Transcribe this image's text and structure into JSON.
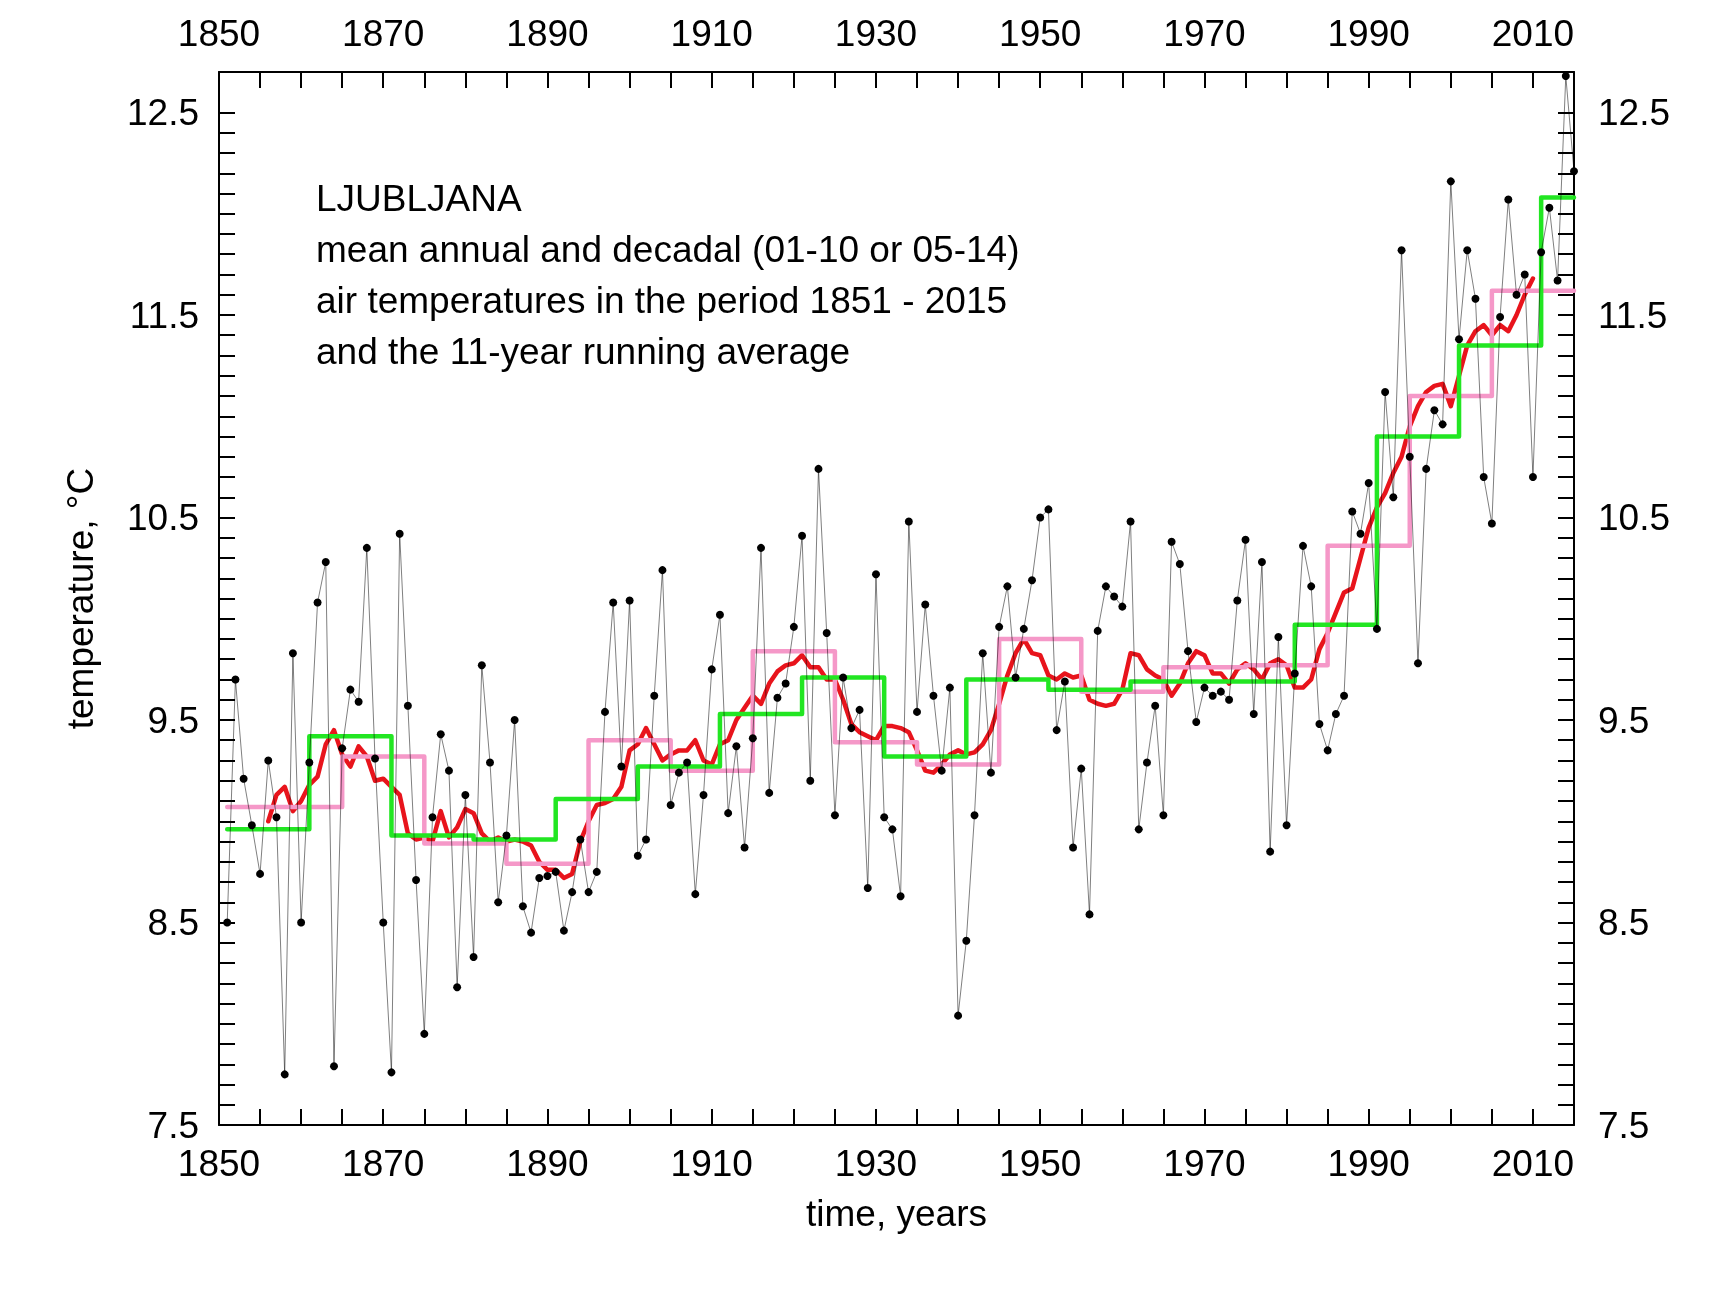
{
  "chart_data": {
    "type": "line",
    "title": "LJUBLJANA",
    "subtitle": "mean annual and decadal (01-10 or 05-14)\nair temperatures in the period 1851 - 2015\nand the 11-year running average",
    "xlabel": "time, years",
    "ylabel": "temperature, °C",
    "xlim": [
      1850,
      2015
    ],
    "ylim": [
      7.5,
      12.7
    ],
    "x2lim": [
      1850,
      2015
    ],
    "y2lim": [
      7.5,
      12.7
    ],
    "xticks": [
      1850,
      {
        "value": 1855,
        "label": null
      },
      {
        "value": 1860,
        "label": null
      },
      {
        "value": 1865,
        "label": null
      },
      1870,
      {
        "value": 1875,
        "label": null
      },
      {
        "value": 1880,
        "label": null
      },
      {
        "value": 1885,
        "label": null
      },
      1890,
      {
        "value": 1895,
        "label": null
      },
      {
        "value": 1900,
        "label": null
      },
      {
        "value": 1905,
        "label": null
      },
      1910,
      {
        "value": 1915,
        "label": null
      },
      {
        "value": 1920,
        "label": null
      },
      {
        "value": 1925,
        "label": null
      },
      1930,
      {
        "value": 1935,
        "label": null
      },
      {
        "value": 1940,
        "label": null
      },
      {
        "value": 1945,
        "label": null
      },
      1950,
      {
        "value": 1955,
        "label": null
      },
      {
        "value": 1960,
        "label": null
      },
      {
        "value": 1965,
        "label": null
      },
      1970,
      {
        "value": 1975,
        "label": null
      },
      {
        "value": 1980,
        "label": null
      },
      {
        "value": 1985,
        "label": null
      },
      1990,
      {
        "value": 1995,
        "label": null
      },
      {
        "value": 2000,
        "label": null
      },
      {
        "value": 2005,
        "label": null
      },
      2010,
      {
        "value": 2015,
        "label": null
      }
    ],
    "x2ticks": [
      1850,
      {
        "value": 1855,
        "label": null
      },
      {
        "value": 1860,
        "label": null
      },
      {
        "value": 1865,
        "label": null
      },
      1870,
      {
        "value": 1875,
        "label": null
      },
      {
        "value": 1880,
        "label": null
      },
      {
        "value": 1885,
        "label": null
      },
      1890,
      {
        "value": 1895,
        "label": null
      },
      {
        "value": 1900,
        "label": null
      },
      {
        "value": 1905,
        "label": null
      },
      1910,
      {
        "value": 1915,
        "label": null
      },
      {
        "value": 1920,
        "label": null
      },
      {
        "value": 1925,
        "label": null
      },
      1930,
      {
        "value": 1935,
        "label": null
      },
      {
        "value": 1940,
        "label": null
      },
      {
        "value": 1945,
        "label": null
      },
      1950,
      {
        "value": 1955,
        "label": null
      },
      {
        "value": 1960,
        "label": null
      },
      {
        "value": 1965,
        "label": null
      },
      1970,
      {
        "value": 1975,
        "label": null
      },
      {
        "value": 1980,
        "label": null
      },
      {
        "value": 1985,
        "label": null
      },
      1990,
      {
        "value": 1995,
        "label": null
      },
      {
        "value": 2000,
        "label": null
      },
      {
        "value": 2005,
        "label": null
      },
      2010,
      {
        "value": 2015,
        "label": null
      }
    ],
    "yticks": [
      7.5,
      {
        "value": 7.6,
        "label": null
      },
      {
        "value": 7.7,
        "label": null
      },
      {
        "value": 7.8,
        "label": null
      },
      {
        "value": 7.9,
        "label": null
      },
      {
        "value": 8.0,
        "label": null
      },
      {
        "value": 8.1,
        "label": null
      },
      {
        "value": 8.2,
        "label": null
      },
      {
        "value": 8.3,
        "label": null
      },
      {
        "value": 8.4,
        "label": null
      },
      8.5,
      {
        "value": 8.6,
        "label": null
      },
      {
        "value": 8.7,
        "label": null
      },
      {
        "value": 8.8,
        "label": null
      },
      {
        "value": 8.9,
        "label": null
      },
      {
        "value": 9.0,
        "label": null
      },
      {
        "value": 9.1,
        "label": null
      },
      {
        "value": 9.2,
        "label": null
      },
      {
        "value": 9.3,
        "label": null
      },
      {
        "value": 9.4,
        "label": null
      },
      9.5,
      {
        "value": 9.6,
        "label": null
      },
      {
        "value": 9.7,
        "label": null
      },
      {
        "value": 9.8,
        "label": null
      },
      {
        "value": 9.9,
        "label": null
      },
      {
        "value": 10.0,
        "label": null
      },
      {
        "value": 10.1,
        "label": null
      },
      {
        "value": 10.2,
        "label": null
      },
      {
        "value": 10.3,
        "label": null
      },
      {
        "value": 10.4,
        "label": null
      },
      10.5,
      {
        "value": 10.6,
        "label": null
      },
      {
        "value": 10.7,
        "label": null
      },
      {
        "value": 10.8,
        "label": null
      },
      {
        "value": 10.9,
        "label": null
      },
      {
        "value": 11.0,
        "label": null
      },
      {
        "value": 11.1,
        "label": null
      },
      {
        "value": 11.2,
        "label": null
      },
      {
        "value": 11.3,
        "label": null
      },
      {
        "value": 11.4,
        "label": null
      },
      11.5,
      {
        "value": 11.6,
        "label": null
      },
      {
        "value": 11.7,
        "label": null
      },
      {
        "value": 11.8,
        "label": null
      },
      {
        "value": 11.9,
        "label": null
      },
      {
        "value": 12.0,
        "label": null
      },
      {
        "value": 12.1,
        "label": null
      },
      {
        "value": 12.2,
        "label": null
      },
      {
        "value": 12.3,
        "label": null
      },
      {
        "value": 12.4,
        "label": null
      },
      12.5
    ],
    "y2ticks": [
      7.5,
      {
        "value": 7.6,
        "label": null
      },
      {
        "value": 7.7,
        "label": null
      },
      {
        "value": 7.8,
        "label": null
      },
      {
        "value": 7.9,
        "label": null
      },
      {
        "value": 8.0,
        "label": null
      },
      {
        "value": 8.1,
        "label": null
      },
      {
        "value": 8.2,
        "label": null
      },
      {
        "value": 8.3,
        "label": null
      },
      {
        "value": 8.4,
        "label": null
      },
      8.5,
      {
        "value": 8.6,
        "label": null
      },
      {
        "value": 8.7,
        "label": null
      },
      {
        "value": 8.8,
        "label": null
      },
      {
        "value": 8.9,
        "label": null
      },
      {
        "value": 9.0,
        "label": null
      },
      {
        "value": 9.1,
        "label": null
      },
      {
        "value": 9.2,
        "label": null
      },
      {
        "value": 9.3,
        "label": null
      },
      {
        "value": 9.4,
        "label": null
      },
      9.5,
      {
        "value": 9.6,
        "label": null
      },
      {
        "value": 9.7,
        "label": null
      },
      {
        "value": 9.8,
        "label": null
      },
      {
        "value": 9.9,
        "label": null
      },
      {
        "value": 10.0,
        "label": null
      },
      {
        "value": 10.1,
        "label": null
      },
      {
        "value": 10.2,
        "label": null
      },
      {
        "value": 10.3,
        "label": null
      },
      {
        "value": 10.4,
        "label": null
      },
      10.5,
      {
        "value": 10.6,
        "label": null
      },
      {
        "value": 10.7,
        "label": null
      },
      {
        "value": 10.8,
        "label": null
      },
      {
        "value": 10.9,
        "label": null
      },
      {
        "value": 11.0,
        "label": null
      },
      {
        "value": 11.1,
        "label": null
      },
      {
        "value": 11.2,
        "label": null
      },
      {
        "value": 11.3,
        "label": null
      },
      {
        "value": 11.4,
        "label": null
      },
      11.5,
      {
        "value": 11.6,
        "label": null
      },
      {
        "value": 11.7,
        "label": null
      },
      {
        "value": 11.8,
        "label": null
      },
      {
        "value": 11.9,
        "label": null
      },
      {
        "value": 12.0,
        "label": null
      },
      {
        "value": 12.1,
        "label": null
      },
      {
        "value": 12.2,
        "label": null
      },
      {
        "value": 12.3,
        "label": null
      },
      {
        "value": 12.4,
        "label": null
      },
      12.5
    ],
    "grid": false,
    "series": [
      {
        "type": "line",
        "color": "#000000",
        "marker": "circle",
        "x": [
          1851,
          1852,
          1853,
          1854,
          1855,
          1856,
          1857,
          1858,
          1859,
          1860,
          1861,
          1862,
          1863,
          1864,
          1865,
          1866,
          1867,
          1868,
          1869,
          1870,
          1871,
          1872,
          1873,
          1874,
          1875,
          1876,
          1877,
          1878,
          1879,
          1880,
          1881,
          1882,
          1883,
          1884,
          1885,
          1886,
          1887,
          1888,
          1889,
          1890,
          1891,
          1892,
          1893,
          1894,
          1895,
          1896,
          1897,
          1898,
          1899,
          1900,
          1901,
          1902,
          1903,
          1904,
          1905,
          1906,
          1907,
          1908,
          1909,
          1910,
          1911,
          1912,
          1913,
          1914,
          1915,
          1916,
          1917,
          1918,
          1919,
          1920,
          1921,
          1922,
          1923,
          1924,
          1925,
          1926,
          1927,
          1928,
          1929,
          1930,
          1931,
          1932,
          1933,
          1934,
          1935,
          1936,
          1937,
          1938,
          1939,
          1940,
          1941,
          1942,
          1943,
          1944,
          1945,
          1946,
          1947,
          1948,
          1949,
          1950,
          1951,
          1952,
          1953,
          1954,
          1955,
          1956,
          1957,
          1958,
          1959,
          1960,
          1961,
          1962,
          1963,
          1964,
          1965,
          1966,
          1967,
          1968,
          1969,
          1970,
          1971,
          1972,
          1973,
          1974,
          1975,
          1976,
          1977,
          1978,
          1979,
          1980,
          1981,
          1982,
          1983,
          1984,
          1985,
          1986,
          1987,
          1988,
          1989,
          1990,
          1991,
          1992,
          1993,
          1994,
          1995,
          1996,
          1997,
          1998,
          1999,
          2000,
          2001,
          2002,
          2003,
          2004,
          2005,
          2006,
          2007,
          2008,
          2009,
          2010,
          2011,
          2012,
          2013,
          2014,
          2015
        ],
        "values": [
          8.5,
          9.7,
          9.21,
          8.98,
          8.74,
          9.3,
          9.02,
          7.75,
          9.83,
          8.5,
          9.29,
          10.08,
          10.28,
          7.79,
          9.36,
          9.65,
          9.59,
          10.35,
          9.31,
          8.5,
          7.76,
          10.42,
          9.57,
          8.71,
          7.95,
          9.02,
          9.43,
          9.25,
          8.18,
          9.13,
          8.33,
          9.77,
          9.29,
          8.6,
          8.93,
          9.5,
          8.58,
          8.45,
          8.72,
          8.73,
          8.75,
          8.46,
          8.65,
          8.91,
          8.65,
          8.75,
          9.54,
          10.08,
          9.27,
          10.09,
          8.83,
          8.91,
          9.62,
          10.24,
          9.08,
          9.24,
          9.29,
          8.64,
          9.13,
          9.75,
          10.02,
          9.04,
          9.37,
          8.87,
          9.41,
          10.35,
          9.14,
          9.61,
          9.68,
          9.96,
          10.41,
          9.2,
          10.74,
          9.93,
          9.03,
          9.71,
          9.46,
          9.55,
          8.67,
          10.22,
          9.02,
          8.96,
          8.63,
          10.48,
          9.54,
          10.07,
          9.62,
          9.25,
          9.66,
          8.04,
          8.41,
          9.03,
          9.83,
          9.24,
          9.96,
          10.16,
          9.71,
          9.95,
          10.19,
          10.5,
          10.54,
          9.45,
          9.69,
          8.87,
          9.26,
          8.54,
          9.94,
          10.16,
          10.11,
          10.06,
          10.48,
          8.96,
          9.29,
          9.57,
          9.03,
          10.38,
          10.27,
          9.84,
          9.49,
          9.66,
          9.62,
          9.64,
          9.6,
          10.09,
          10.39,
          9.53,
          10.28,
          8.85,
          9.91,
          8.98,
          9.73,
          10.36,
          10.16,
          9.48,
          9.35,
          9.53,
          9.62,
          10.53,
          10.42,
          10.67,
          9.95,
          11.12,
          10.6,
          11.82,
          10.8,
          9.78,
          10.74,
          11.03,
          10.96,
          12.16,
          11.38,
          11.82,
          11.58,
          10.7,
          10.47,
          11.49,
          12.07,
          11.6,
          11.7,
          10.7,
          11.81,
          12.03,
          11.67,
          12.68,
          12.21
        ]
      },
      {
        "type": "line",
        "color": "#e8141c",
        "marker": "none",
        "x": [
          1856,
          1857,
          1858,
          1859,
          1860,
          1861,
          1862,
          1863,
          1864,
          1865,
          1866,
          1867,
          1868,
          1869,
          1870,
          1871,
          1872,
          1873,
          1874,
          1875,
          1876,
          1877,
          1878,
          1879,
          1880,
          1881,
          1882,
          1883,
          1884,
          1885,
          1886,
          1887,
          1888,
          1889,
          1890,
          1891,
          1892,
          1893,
          1894,
          1895,
          1896,
          1897,
          1898,
          1899,
          1900,
          1901,
          1902,
          1903,
          1904,
          1905,
          1906,
          1907,
          1908,
          1909,
          1910,
          1911,
          1912,
          1913,
          1914,
          1915,
          1916,
          1917,
          1918,
          1919,
          1920,
          1921,
          1922,
          1923,
          1924,
          1925,
          1926,
          1927,
          1928,
          1929,
          1930,
          1931,
          1932,
          1933,
          1934,
          1935,
          1936,
          1937,
          1938,
          1939,
          1940,
          1941,
          1942,
          1943,
          1944,
          1945,
          1946,
          1947,
          1948,
          1949,
          1950,
          1951,
          1952,
          1953,
          1954,
          1955,
          1956,
          1957,
          1958,
          1959,
          1960,
          1961,
          1962,
          1963,
          1964,
          1965,
          1966,
          1967,
          1968,
          1969,
          1970,
          1971,
          1972,
          1973,
          1974,
          1975,
          1976,
          1977,
          1978,
          1979,
          1980,
          1981,
          1982,
          1983,
          1984,
          1985,
          1986,
          1987,
          1988,
          1989,
          1990,
          1991,
          1992,
          1993,
          1994,
          1995,
          1996,
          1997,
          1998,
          1999,
          2000,
          2001,
          2002,
          2003,
          2004,
          2005,
          2006,
          2007,
          2008,
          2009,
          2010
        ],
        "values": [
          9.0,
          9.13,
          9.17,
          9.05,
          9.1,
          9.18,
          9.22,
          9.38,
          9.45,
          9.33,
          9.27,
          9.37,
          9.32,
          9.2,
          9.21,
          9.17,
          9.13,
          8.94,
          8.91,
          8.92,
          8.9,
          9.05,
          8.92,
          8.97,
          9.06,
          9.04,
          8.94,
          8.9,
          8.92,
          8.9,
          8.91,
          8.9,
          8.88,
          8.8,
          8.76,
          8.76,
          8.72,
          8.74,
          8.9,
          9.0,
          9.08,
          9.09,
          9.11,
          9.17,
          9.35,
          9.38,
          9.46,
          9.38,
          9.3,
          9.33,
          9.35,
          9.35,
          9.4,
          9.3,
          9.28,
          9.38,
          9.4,
          9.5,
          9.56,
          9.62,
          9.58,
          9.68,
          9.74,
          9.77,
          9.78,
          9.82,
          9.76,
          9.76,
          9.7,
          9.7,
          9.6,
          9.48,
          9.44,
          9.42,
          9.4,
          9.47,
          9.47,
          9.46,
          9.44,
          9.35,
          9.25,
          9.24,
          9.28,
          9.33,
          9.35,
          9.33,
          9.34,
          9.38,
          9.45,
          9.58,
          9.72,
          9.83,
          9.9,
          9.83,
          9.82,
          9.72,
          9.7,
          9.73,
          9.71,
          9.72,
          9.6,
          9.58,
          9.57,
          9.58,
          9.65,
          9.83,
          9.82,
          9.75,
          9.72,
          9.7,
          9.62,
          9.68,
          9.78,
          9.84,
          9.82,
          9.73,
          9.73,
          9.68,
          9.75,
          9.78,
          9.75,
          9.7,
          9.78,
          9.8,
          9.77,
          9.66,
          9.66,
          9.7,
          9.85,
          9.93,
          10.03,
          10.13,
          10.15,
          10.3,
          10.45,
          10.55,
          10.62,
          10.72,
          10.8,
          10.95,
          11.05,
          11.12,
          11.15,
          11.16,
          11.05,
          11.2,
          11.35,
          11.42,
          11.45,
          11.4,
          11.45,
          11.42,
          11.5,
          11.6,
          11.68
        ]
      },
      {
        "type": "step",
        "color": "#f598c8",
        "marker": "none",
        "x": [
          1851,
          1865,
          1875,
          1885,
          1895,
          1905,
          1915,
          1925,
          1935,
          1945,
          1955,
          1965,
          1975,
          1985,
          1995,
          2005,
          2015
        ],
        "values": [
          9.07,
          9.32,
          8.89,
          8.79,
          9.4,
          9.25,
          9.84,
          9.39,
          9.28,
          9.9,
          9.64,
          9.76,
          9.77,
          10.36,
          11.1,
          11.62,
          11.62
        ]
      },
      {
        "type": "step",
        "color": "#22e622",
        "marker": "none",
        "x": [
          1851,
          1861,
          1871,
          1881,
          1891,
          1901,
          1911,
          1921,
          1931,
          1941,
          1951,
          1961,
          1971,
          1981,
          1991,
          2001,
          2011,
          2015
        ],
        "values": [
          8.96,
          9.42,
          8.93,
          8.91,
          9.11,
          9.27,
          9.53,
          9.71,
          9.32,
          9.7,
          9.65,
          9.69,
          9.69,
          9.97,
          10.9,
          11.35,
          12.08,
          12.08
        ]
      }
    ]
  }
}
